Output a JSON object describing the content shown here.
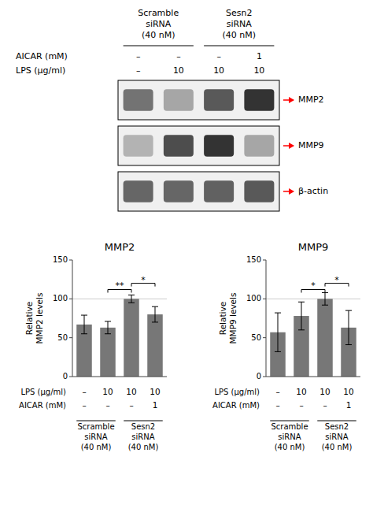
{
  "chart_data": [
    {
      "type": "heatmap",
      "categories": [
        null,
        null,
        null,
        null
      ],
      "rows": [
        "MMP2",
        "MMP9",
        "β-actin"
      ],
      "cells": [
        [
          0.55,
          0.35,
          0.65,
          0.8
        ],
        [
          0.3,
          0.7,
          0.8,
          0.35
        ],
        [
          0.6,
          0.6,
          0.62,
          0.65
        ]
      ],
      "color": "#ff0000",
      "conditions": [
        {
          "label": "AICAR (mM)",
          "values": [
            "–",
            "–",
            "–",
            "1"
          ]
        },
        {
          "label": "LPS (μg/ml)",
          "values": [
            "–",
            "10",
            "10",
            "10"
          ]
        }
      ],
      "groups": [
        "Scramble\nsiRNA\n(40 nM)",
        "Sesn2\nsiRNA\n(40 nM)"
      ],
      "tick_labels": false
    },
    {
      "type": "bar",
      "title": "MMP2",
      "y_label": "Relative\nMMP2 levels",
      "categories": [
        null,
        null,
        null,
        null
      ],
      "values": [
        67,
        63,
        100,
        80
      ],
      "errors": [
        12,
        8,
        5,
        10
      ],
      "color": "#777777",
      "ylim": [
        0,
        150
      ],
      "yticks": [
        0,
        50,
        100,
        150
      ],
      "hline": 100,
      "tick_labels": "y",
      "grid": false,
      "annotations": [
        {
          "text": "**",
          "between": [
            1,
            2
          ],
          "y": 112
        },
        {
          "text": "*",
          "between": [
            2,
            3
          ],
          "y": 120
        }
      ],
      "conditions": [
        {
          "label": "LPS (μg/ml)",
          "values": [
            "–",
            "10",
            "10",
            "10"
          ]
        },
        {
          "label": "AICAR (mM)",
          "values": [
            "–",
            "–",
            "–",
            "1"
          ]
        }
      ],
      "groups": [
        "Scramble\nsiRNA\n(40 nM)",
        "Sesn2\nsiRNA\n(40 nM)"
      ]
    },
    {
      "type": "bar",
      "title": "MMP9",
      "y_label": "Relative\nMMP9 levels",
      "categories": [
        null,
        null,
        null,
        null
      ],
      "values": [
        57,
        78,
        100,
        63
      ],
      "errors": [
        25,
        18,
        8,
        22
      ],
      "color": "#777777",
      "ylim": [
        0,
        150
      ],
      "yticks": [
        0,
        50,
        100,
        150
      ],
      "hline": 100,
      "tick_labels": "y",
      "grid": false,
      "annotations": [
        {
          "text": "*",
          "between": [
            1,
            2
          ],
          "y": 112
        },
        {
          "text": "*",
          "between": [
            2,
            3
          ],
          "y": 120
        }
      ],
      "conditions": [
        {
          "label": "LPS (μg/ml)",
          "values": [
            "–",
            "10",
            "10",
            "10"
          ]
        },
        {
          "label": "AICAR (mM)",
          "values": [
            "–",
            "–",
            "–",
            "1"
          ]
        }
      ],
      "groups": [
        "Scramble\nsiRNA\n(40 nM)",
        "Sesn2\nsiRNA\n(40 nM)"
      ]
    }
  ]
}
